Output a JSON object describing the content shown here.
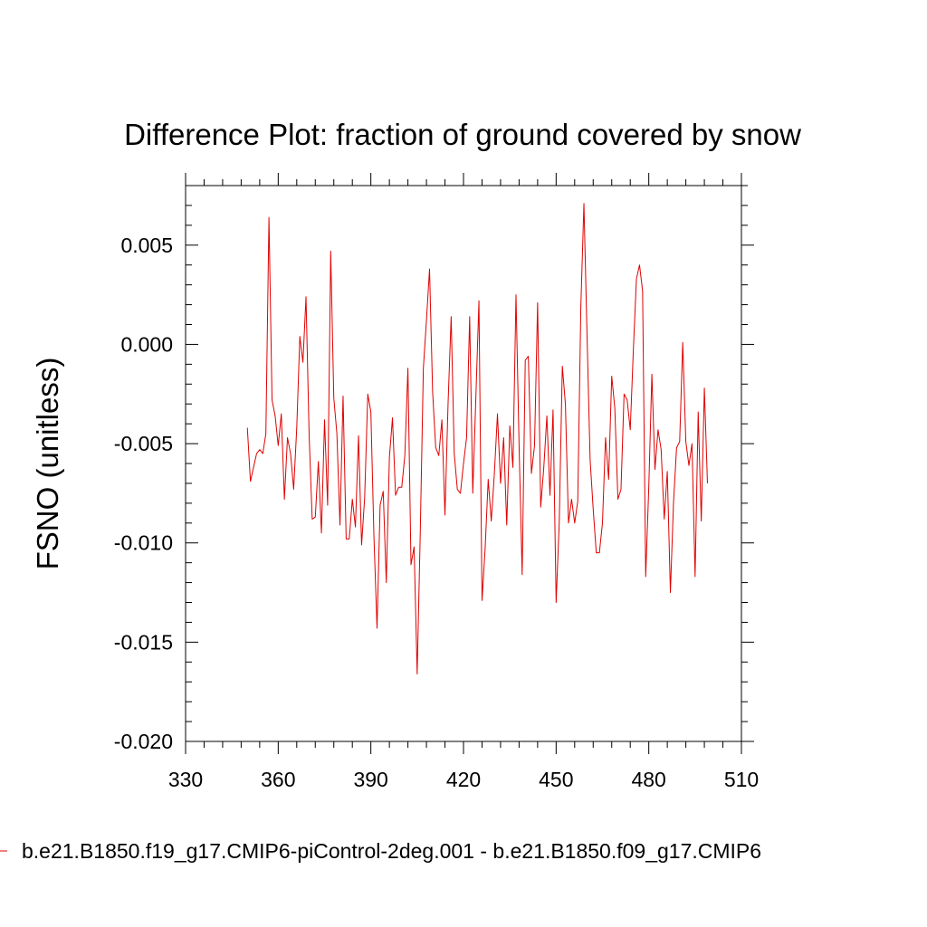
{
  "chart_data": {
    "type": "line",
    "title": "Difference Plot: fraction of ground covered by snow",
    "xlabel": "",
    "ylabel": "FSNO  (unitless)",
    "xlim": [
      330,
      510
    ],
    "ylim": [
      -0.02,
      0.008
    ],
    "xticks": [
      330,
      360,
      390,
      420,
      450,
      480,
      510
    ],
    "xtick_labels": [
      "330",
      "360",
      "390",
      "420",
      "450",
      "480",
      "510"
    ],
    "yticks": [
      -0.02,
      -0.015,
      -0.01,
      -0.005,
      0.0,
      0.005
    ],
    "ytick_labels": [
      "-0.020",
      "-0.015",
      "-0.010",
      "-0.005",
      "0.000",
      "0.005"
    ],
    "grid": false,
    "series": [
      {
        "name": "b.e21.B1850.f19_g17.CMIP6-piControl-2deg.001 - b.e21.B1850.f09_g17.CMIP6",
        "color": "#e00000",
        "x": [
          350,
          351,
          352,
          353,
          354,
          355,
          356,
          357,
          358,
          359,
          360,
          361,
          362,
          363,
          364,
          365,
          366,
          367,
          368,
          369,
          370,
          371,
          372,
          373,
          374,
          375,
          376,
          377,
          378,
          379,
          380,
          381,
          382,
          383,
          384,
          385,
          386,
          387,
          388,
          389,
          390,
          391,
          392,
          393,
          394,
          395,
          396,
          397,
          398,
          399,
          400,
          401,
          402,
          403,
          404,
          405,
          406,
          407,
          408,
          409,
          410,
          411,
          412,
          413,
          414,
          415,
          416,
          417,
          418,
          419,
          420,
          421,
          422,
          423,
          424,
          425,
          426,
          427,
          428,
          429,
          430,
          431,
          432,
          433,
          434,
          435,
          436,
          437,
          438,
          439,
          440,
          441,
          442,
          443,
          444,
          445,
          446,
          447,
          448,
          449,
          450,
          451,
          452,
          453,
          454,
          455,
          456,
          457,
          458,
          459,
          460,
          461,
          462,
          463,
          464,
          465,
          466,
          467,
          468,
          469,
          470,
          471,
          472,
          473,
          474,
          475,
          476,
          477,
          478,
          479,
          480,
          481,
          482,
          483,
          484,
          485,
          486,
          487,
          488,
          489,
          490,
          491,
          492,
          493,
          494,
          495,
          496,
          497,
          498,
          499
        ],
        "values": [
          -0.0042,
          -0.0069,
          -0.0062,
          -0.0055,
          -0.0053,
          -0.0055,
          -0.0045,
          0.0064,
          -0.0028,
          -0.0036,
          -0.0051,
          -0.0035,
          -0.0078,
          -0.0047,
          -0.0055,
          -0.0073,
          -0.0042,
          0.0004,
          -0.0009,
          0.0024,
          -0.0045,
          -0.0088,
          -0.0087,
          -0.0059,
          -0.0095,
          -0.0038,
          -0.0081,
          0.0047,
          -0.0027,
          -0.0045,
          -0.0091,
          -0.0026,
          -0.0098,
          -0.0098,
          -0.0078,
          -0.0092,
          -0.0046,
          -0.0101,
          -0.0077,
          -0.0025,
          -0.0034,
          -0.0097,
          -0.0143,
          -0.0081,
          -0.0074,
          -0.012,
          -0.0057,
          -0.0037,
          -0.0076,
          -0.0072,
          -0.0072,
          -0.0056,
          -0.0012,
          -0.0111,
          -0.0102,
          -0.0166,
          -0.0095,
          -0.0012,
          0.0012,
          0.0038,
          -0.0024,
          -0.0052,
          -0.0056,
          -0.0038,
          -0.0086,
          -0.003,
          0.0014,
          -0.0055,
          -0.0073,
          -0.0075,
          -0.006,
          -0.0047,
          0.0014,
          -0.0075,
          -0.0027,
          0.0022,
          -0.0129,
          -0.0103,
          -0.0068,
          -0.0089,
          -0.0065,
          -0.0035,
          -0.007,
          -0.0047,
          -0.0091,
          -0.0041,
          -0.0062,
          0.0025,
          -0.0051,
          -0.0116,
          -0.0008,
          -0.0006,
          -0.0065,
          -0.0051,
          0.0021,
          -0.0082,
          -0.0062,
          -0.0036,
          -0.0076,
          -0.0033,
          -0.013,
          -0.009,
          -0.0011,
          -0.003,
          -0.009,
          -0.0078,
          -0.009,
          -0.0079,
          0.0019,
          0.0071,
          0.0005,
          -0.0058,
          -0.0083,
          -0.0105,
          -0.0105,
          -0.009,
          -0.0047,
          -0.0068,
          -0.0016,
          -0.0032,
          -0.0078,
          -0.0073,
          -0.0025,
          -0.0028,
          -0.0043,
          -0.0003,
          0.0033,
          0.004,
          0.0027,
          -0.0117,
          -0.0072,
          -0.0015,
          -0.0063,
          -0.0043,
          -0.0053,
          -0.0088,
          -0.0064,
          -0.0125,
          -0.008,
          -0.0052,
          -0.0049,
          0.0001,
          -0.0049,
          -0.0061,
          -0.005,
          -0.0117,
          -0.0034,
          -0.0089,
          -0.0022,
          -0.007
        ]
      }
    ],
    "legend": {
      "placement": "bottom",
      "entries": [
        "b.e21.B1850.f19_g17.CMIP6-piControl-2deg.001 - b.e21.B1850.f09_g17.CMIP6"
      ]
    }
  }
}
